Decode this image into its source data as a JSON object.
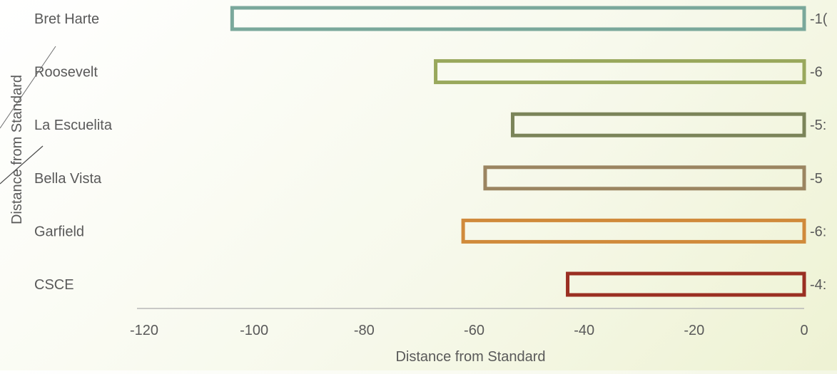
{
  "chart_data": {
    "type": "bar",
    "orientation": "horizontal",
    "categories": [
      "Bret Harte",
      "Roosevelt",
      "La Escuelita",
      "Bella Vista",
      "Garfield",
      "CSCE"
    ],
    "values": [
      -104,
      -67,
      -53,
      -58,
      -62,
      -43
    ],
    "data_labels": [
      "-1(",
      "-6",
      "-5:",
      "-5",
      "-6:",
      "-4:"
    ],
    "colors": [
      "#7aa89b",
      "#99a85c",
      "#7b8459",
      "#9b8561",
      "#d08a3b",
      "#9a2f22"
    ],
    "xlim": [
      -120,
      0
    ],
    "x_ticks": [
      -120,
      -100,
      -80,
      -60,
      -40,
      -20,
      0
    ],
    "x_tick_labels": [
      "-120",
      "-100",
      "-80",
      "-60",
      "-40",
      "-20",
      "0"
    ],
    "xlabel": "Distance from Standard",
    "ylabel": "Distance from Standard",
    "title": "",
    "grid": false,
    "legend": "none"
  }
}
